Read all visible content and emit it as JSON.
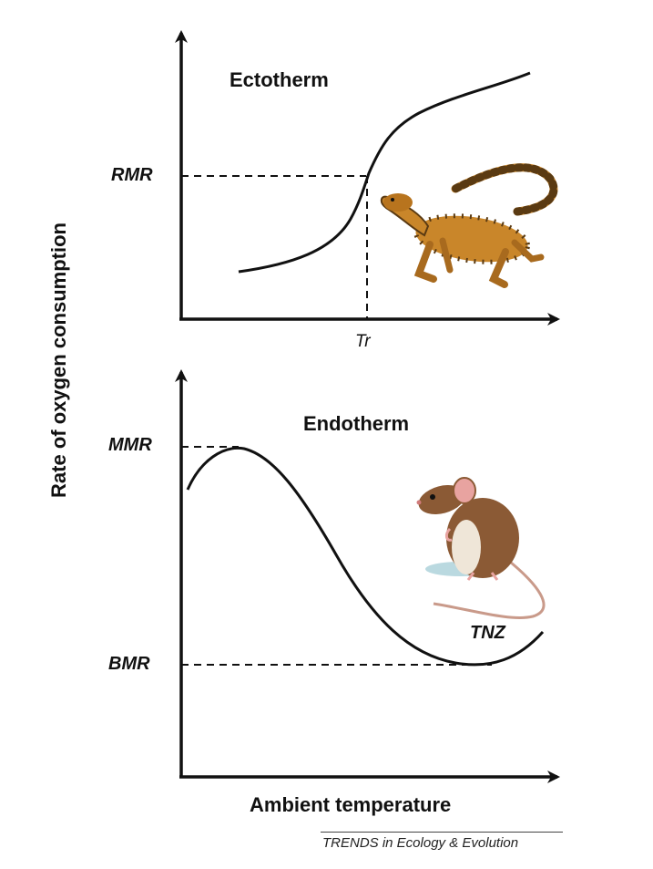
{
  "figure": {
    "y_axis_label": "Rate of oxygen consumption",
    "x_axis_label": "Ambient temperature",
    "credit": "TRENDS in Ecology & Evolution"
  },
  "panels": [
    {
      "title": "Ectotherm",
      "levels": [
        "RMR"
      ],
      "x_markers": [
        "Tr"
      ],
      "illustration": "lizard-illustration"
    },
    {
      "title": "Endotherm",
      "levels": [
        "MMR",
        "BMR"
      ],
      "zone_label": "TNZ",
      "illustration": "mouse-illustration"
    }
  ],
  "colors": {
    "ink": "#111111",
    "lizard_body": "#c9862a",
    "lizard_spots": "#5a3a12",
    "mouse_fur": "#8b5a35",
    "mouse_belly": "#efe6d8",
    "mouse_ear": "#e8a3a0",
    "shadow": "#a9cfd8"
  }
}
